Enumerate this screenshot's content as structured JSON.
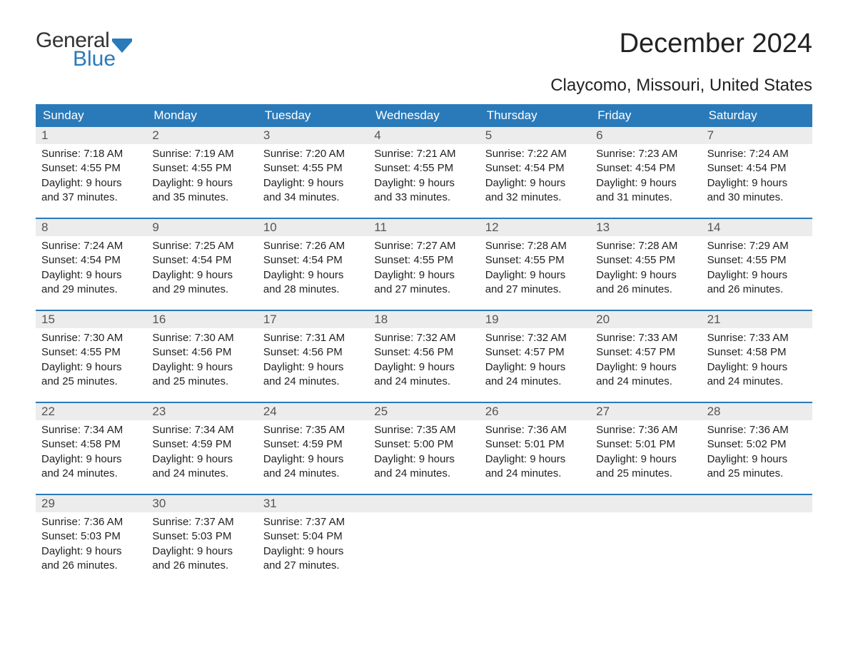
{
  "logo": {
    "text1": "General",
    "text2": "Blue",
    "flag_color": "#2a7ab9"
  },
  "title": "December 2024",
  "location": "Claycomo, Missouri, United States",
  "colors": {
    "header_bg": "#2a7ab9",
    "header_fg": "#ffffff",
    "daynum_bg": "#ececec",
    "daynum_fg": "#555555",
    "body_fg": "#222222",
    "page_bg": "#ffffff"
  },
  "typography": {
    "title_fontsize": 38,
    "location_fontsize": 24,
    "header_fontsize": 17,
    "body_fontsize": 15
  },
  "day_headers": [
    "Sunday",
    "Monday",
    "Tuesday",
    "Wednesday",
    "Thursday",
    "Friday",
    "Saturday"
  ],
  "labels": {
    "sunrise": "Sunrise:",
    "sunset": "Sunset:",
    "daylight": "Daylight:"
  },
  "weeks": [
    [
      {
        "num": "1",
        "sunrise": "7:18 AM",
        "sunset": "4:55 PM",
        "daylight_h": "9",
        "daylight_m": "37"
      },
      {
        "num": "2",
        "sunrise": "7:19 AM",
        "sunset": "4:55 PM",
        "daylight_h": "9",
        "daylight_m": "35"
      },
      {
        "num": "3",
        "sunrise": "7:20 AM",
        "sunset": "4:55 PM",
        "daylight_h": "9",
        "daylight_m": "34"
      },
      {
        "num": "4",
        "sunrise": "7:21 AM",
        "sunset": "4:55 PM",
        "daylight_h": "9",
        "daylight_m": "33"
      },
      {
        "num": "5",
        "sunrise": "7:22 AM",
        "sunset": "4:54 PM",
        "daylight_h": "9",
        "daylight_m": "32"
      },
      {
        "num": "6",
        "sunrise": "7:23 AM",
        "sunset": "4:54 PM",
        "daylight_h": "9",
        "daylight_m": "31"
      },
      {
        "num": "7",
        "sunrise": "7:24 AM",
        "sunset": "4:54 PM",
        "daylight_h": "9",
        "daylight_m": "30"
      }
    ],
    [
      {
        "num": "8",
        "sunrise": "7:24 AM",
        "sunset": "4:54 PM",
        "daylight_h": "9",
        "daylight_m": "29"
      },
      {
        "num": "9",
        "sunrise": "7:25 AM",
        "sunset": "4:54 PM",
        "daylight_h": "9",
        "daylight_m": "29"
      },
      {
        "num": "10",
        "sunrise": "7:26 AM",
        "sunset": "4:54 PM",
        "daylight_h": "9",
        "daylight_m": "28"
      },
      {
        "num": "11",
        "sunrise": "7:27 AM",
        "sunset": "4:55 PM",
        "daylight_h": "9",
        "daylight_m": "27"
      },
      {
        "num": "12",
        "sunrise": "7:28 AM",
        "sunset": "4:55 PM",
        "daylight_h": "9",
        "daylight_m": "27"
      },
      {
        "num": "13",
        "sunrise": "7:28 AM",
        "sunset": "4:55 PM",
        "daylight_h": "9",
        "daylight_m": "26"
      },
      {
        "num": "14",
        "sunrise": "7:29 AM",
        "sunset": "4:55 PM",
        "daylight_h": "9",
        "daylight_m": "26"
      }
    ],
    [
      {
        "num": "15",
        "sunrise": "7:30 AM",
        "sunset": "4:55 PM",
        "daylight_h": "9",
        "daylight_m": "25"
      },
      {
        "num": "16",
        "sunrise": "7:30 AM",
        "sunset": "4:56 PM",
        "daylight_h": "9",
        "daylight_m": "25"
      },
      {
        "num": "17",
        "sunrise": "7:31 AM",
        "sunset": "4:56 PM",
        "daylight_h": "9",
        "daylight_m": "24"
      },
      {
        "num": "18",
        "sunrise": "7:32 AM",
        "sunset": "4:56 PM",
        "daylight_h": "9",
        "daylight_m": "24"
      },
      {
        "num": "19",
        "sunrise": "7:32 AM",
        "sunset": "4:57 PM",
        "daylight_h": "9",
        "daylight_m": "24"
      },
      {
        "num": "20",
        "sunrise": "7:33 AM",
        "sunset": "4:57 PM",
        "daylight_h": "9",
        "daylight_m": "24"
      },
      {
        "num": "21",
        "sunrise": "7:33 AM",
        "sunset": "4:58 PM",
        "daylight_h": "9",
        "daylight_m": "24"
      }
    ],
    [
      {
        "num": "22",
        "sunrise": "7:34 AM",
        "sunset": "4:58 PM",
        "daylight_h": "9",
        "daylight_m": "24"
      },
      {
        "num": "23",
        "sunrise": "7:34 AM",
        "sunset": "4:59 PM",
        "daylight_h": "9",
        "daylight_m": "24"
      },
      {
        "num": "24",
        "sunrise": "7:35 AM",
        "sunset": "4:59 PM",
        "daylight_h": "9",
        "daylight_m": "24"
      },
      {
        "num": "25",
        "sunrise": "7:35 AM",
        "sunset": "5:00 PM",
        "daylight_h": "9",
        "daylight_m": "24"
      },
      {
        "num": "26",
        "sunrise": "7:36 AM",
        "sunset": "5:01 PM",
        "daylight_h": "9",
        "daylight_m": "24"
      },
      {
        "num": "27",
        "sunrise": "7:36 AM",
        "sunset": "5:01 PM",
        "daylight_h": "9",
        "daylight_m": "25"
      },
      {
        "num": "28",
        "sunrise": "7:36 AM",
        "sunset": "5:02 PM",
        "daylight_h": "9",
        "daylight_m": "25"
      }
    ],
    [
      {
        "num": "29",
        "sunrise": "7:36 AM",
        "sunset": "5:03 PM",
        "daylight_h": "9",
        "daylight_m": "26"
      },
      {
        "num": "30",
        "sunrise": "7:37 AM",
        "sunset": "5:03 PM",
        "daylight_h": "9",
        "daylight_m": "26"
      },
      {
        "num": "31",
        "sunrise": "7:37 AM",
        "sunset": "5:04 PM",
        "daylight_h": "9",
        "daylight_m": "27"
      },
      null,
      null,
      null,
      null
    ]
  ]
}
